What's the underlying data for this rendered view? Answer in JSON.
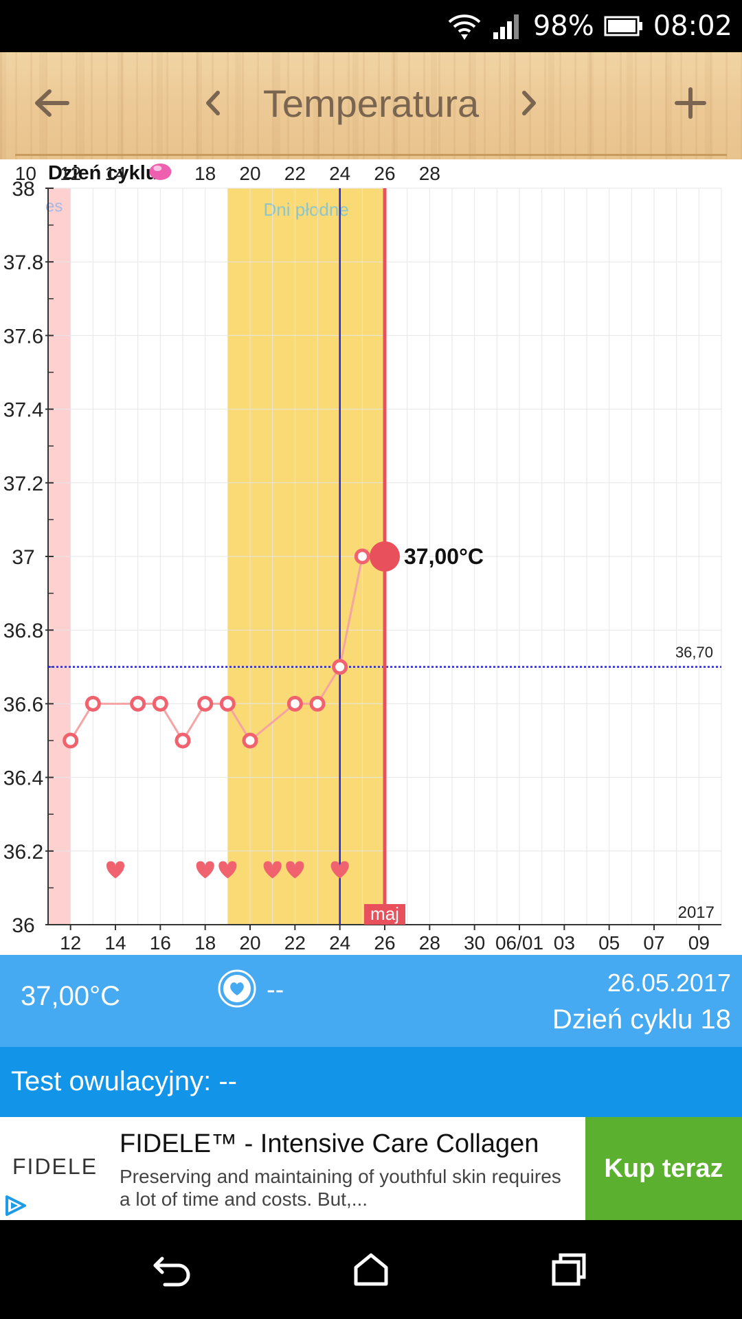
{
  "status_bar": {
    "battery": "98%",
    "time": "08:02"
  },
  "header": {
    "title": "Temperatura"
  },
  "chart_data": {
    "type": "line",
    "top_axis": {
      "label": "Dzień cyklu",
      "ticks": [
        {
          "x": 10,
          "label": "10"
        },
        {
          "x": 12,
          "label": "12"
        },
        {
          "x": 14,
          "label": "14"
        },
        {
          "x": 18,
          "label": "18"
        },
        {
          "x": 20,
          "label": "20"
        },
        {
          "x": 22,
          "label": "22"
        },
        {
          "x": 24,
          "label": "24"
        },
        {
          "x": 26,
          "label": "26"
        },
        {
          "x": 28,
          "label": "28"
        }
      ],
      "ovulation_marker_x": 16
    },
    "xlim": [
      -1,
      29
    ],
    "ylim": [
      36,
      38
    ],
    "y_ticks": [
      {
        "v": 38,
        "label": "38"
      },
      {
        "v": 37.8,
        "label": "37.8"
      },
      {
        "v": 37.6,
        "label": "37.6"
      },
      {
        "v": 37.4,
        "label": "37.4"
      },
      {
        "v": 37.2,
        "label": "37.2"
      },
      {
        "v": 37,
        "label": "37"
      },
      {
        "v": 36.8,
        "label": "36.8"
      },
      {
        "v": 36.6,
        "label": "36.6"
      },
      {
        "v": 36.4,
        "label": "36.4"
      },
      {
        "v": 36.2,
        "label": "36.2"
      },
      {
        "v": 36,
        "label": "36"
      }
    ],
    "x_ticks": [
      {
        "x": 0,
        "label": "12"
      },
      {
        "x": 2,
        "label": "14"
      },
      {
        "x": 4,
        "label": "16"
      },
      {
        "x": 6,
        "label": "18"
      },
      {
        "x": 8,
        "label": "20"
      },
      {
        "x": 10,
        "label": "22"
      },
      {
        "x": 12,
        "label": "24"
      },
      {
        "x": 14,
        "label": "26"
      },
      {
        "x": 16,
        "label": "28"
      },
      {
        "x": 18,
        "label": "30"
      },
      {
        "x": 20,
        "label": "06/01"
      },
      {
        "x": 22,
        "label": "03"
      },
      {
        "x": 24,
        "label": "05"
      },
      {
        "x": 26,
        "label": "07"
      },
      {
        "x": 28,
        "label": "09"
      }
    ],
    "series": [
      {
        "values": [
          {
            "x": 0,
            "y": 36.5
          },
          {
            "x": 1,
            "y": 36.6
          },
          {
            "x": 3,
            "y": 36.6
          },
          {
            "x": 4,
            "y": 36.6
          },
          {
            "x": 5,
            "y": 36.5
          },
          {
            "x": 6,
            "y": 36.6
          },
          {
            "x": 7,
            "y": 36.6
          },
          {
            "x": 8,
            "y": 36.5
          },
          {
            "x": 10,
            "y": 36.6
          },
          {
            "x": 11,
            "y": 36.6
          },
          {
            "x": 12,
            "y": 36.7
          },
          {
            "x": 13,
            "y": 37.0
          },
          {
            "x": 14,
            "y": 37.0
          }
        ]
      }
    ],
    "selected_point": {
      "x": 14,
      "y": 37.0,
      "label": "37,00°C"
    },
    "coverline": {
      "y": 36.7,
      "label": "36,70"
    },
    "period_band": {
      "x0": -1,
      "x1": 0,
      "label": "es"
    },
    "fertile_band": {
      "x0": 7,
      "x1": 14,
      "label": "Dni płodne"
    },
    "ovulation_line_x": 12,
    "today_line": {
      "x": 14,
      "label": "maj"
    },
    "year_label": "2017",
    "intercourse_days": [
      2,
      6,
      7,
      9,
      10,
      12
    ],
    "colors": {
      "line": "#f5a3a3",
      "marker": "#f0626e",
      "fertile": "#f9da75",
      "period": "#ffd0d0",
      "today": "#e8505b",
      "ovulation": "#2424c8",
      "ovulation_dot": "#ee5fb0"
    }
  },
  "info": {
    "temperature": "37,00°C",
    "sex_value": "--",
    "date": "26.05.2017",
    "cycle_day": "Dzień cyklu 18",
    "ovulation_test": "Test owulacyjny: --"
  },
  "ad": {
    "logo": "FIDELE",
    "title": "FIDELE™ - Intensive Care Collagen",
    "description": "Preserving and maintaining of youthful skin requires a lot of time and costs. But,...",
    "cta": "Kup teraz"
  }
}
